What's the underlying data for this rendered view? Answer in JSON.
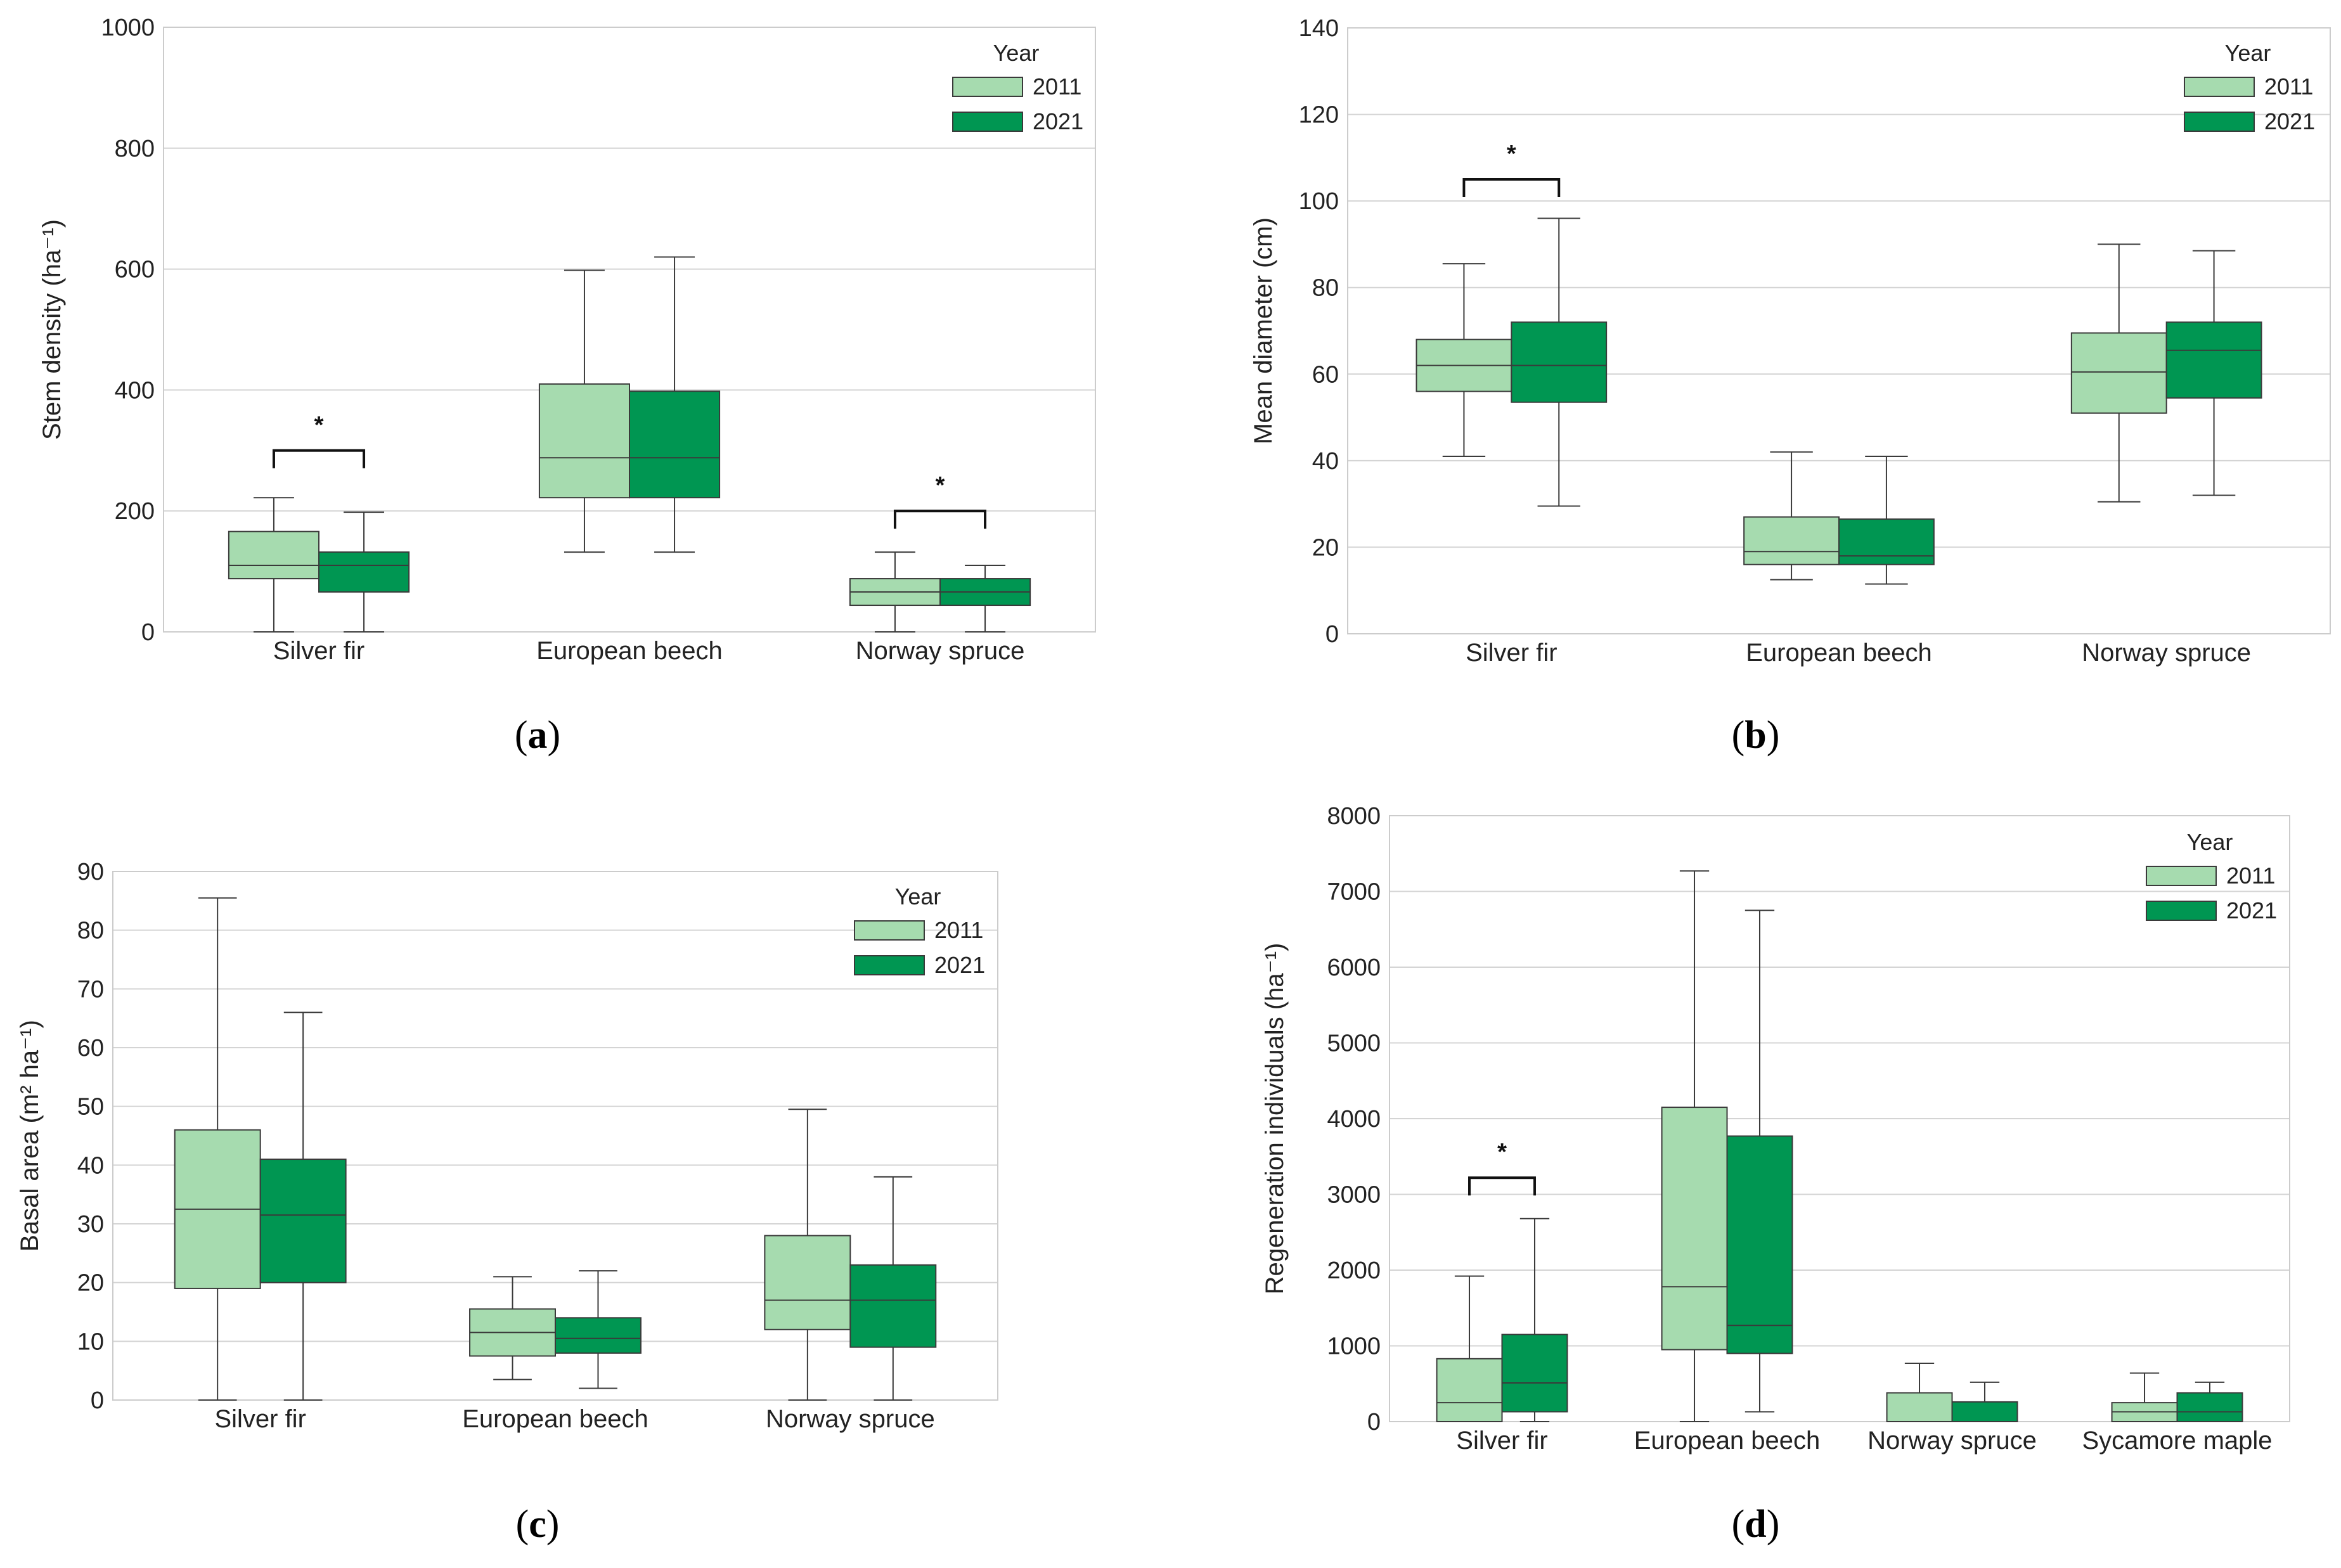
{
  "colors": {
    "c2011": "#a6dbaf",
    "c2021": "#009652",
    "grid": "#d4d4d4",
    "frame": "#cccccc",
    "line": "#3a3a3a"
  },
  "legend_title": "Year",
  "chart_data": [
    {
      "id": "a",
      "type": "box",
      "caption": "(a)",
      "caption_letter": "a",
      "ylabel": "Stem density (ha⁻¹)",
      "ylim": [
        0,
        1000
      ],
      "yticks": [
        0,
        200,
        400,
        600,
        800,
        1000
      ],
      "categories": [
        "Silver fir",
        "European beech",
        "Norway spruce"
      ],
      "legend": {
        "title": "Year",
        "entries": [
          "2011",
          "2021"
        ],
        "position": "top-right"
      },
      "series": [
        {
          "name": "2011",
          "boxes": [
            {
              "min": 0,
              "q1": 88,
              "median": 110,
              "q3": 166,
              "max": 222
            },
            {
              "min": 132,
              "q1": 222,
              "median": 288,
              "q3": 410,
              "max": 598
            },
            {
              "min": 0,
              "q1": 44,
              "median": 66,
              "q3": 88,
              "max": 132
            }
          ]
        },
        {
          "name": "2021",
          "boxes": [
            {
              "min": 0,
              "q1": 66,
              "median": 110,
              "q3": 132,
              "max": 198
            },
            {
              "min": 132,
              "q1": 222,
              "median": 288,
              "q3": 398,
              "max": 620
            },
            {
              "min": 0,
              "q1": 44,
              "median": 66,
              "q3": 88,
              "max": 110
            }
          ]
        }
      ],
      "annotations": [
        {
          "text": "*",
          "category": 0,
          "level": 300
        },
        {
          "text": "*",
          "category": 2,
          "level": 200
        }
      ]
    },
    {
      "id": "b",
      "type": "box",
      "caption": "(b)",
      "caption_letter": "b",
      "ylabel": "Mean diameter (cm)",
      "ylim": [
        0,
        140
      ],
      "yticks": [
        0,
        20,
        40,
        60,
        80,
        100,
        120,
        140
      ],
      "categories": [
        "Silver fir",
        "European beech",
        "Norway spruce"
      ],
      "legend": {
        "title": "Year",
        "entries": [
          "2011",
          "2021"
        ],
        "position": "top-right"
      },
      "series": [
        {
          "name": "2011",
          "boxes": [
            {
              "min": 41,
              "q1": 56,
              "median": 62,
              "q3": 68,
              "max": 85.5
            },
            {
              "min": 12.5,
              "q1": 16,
              "median": 19,
              "q3": 27,
              "max": 42
            },
            {
              "min": 30.5,
              "q1": 51,
              "median": 60.5,
              "q3": 69.5,
              "max": 90
            }
          ]
        },
        {
          "name": "2021",
          "boxes": [
            {
              "min": 29.5,
              "q1": 53.5,
              "median": 62,
              "q3": 72,
              "max": 96
            },
            {
              "min": 11.5,
              "q1": 16,
              "median": 18,
              "q3": 26.5,
              "max": 41
            },
            {
              "min": 32,
              "q1": 54.5,
              "median": 65.5,
              "q3": 72,
              "max": 88.5
            }
          ]
        }
      ],
      "annotations": [
        {
          "text": "*",
          "category": 0,
          "level": 105
        }
      ]
    },
    {
      "id": "c",
      "type": "box",
      "caption": "(c)",
      "caption_letter": "c",
      "ylabel": "Basal area (m² ha⁻¹)",
      "ylim": [
        0,
        90
      ],
      "yticks": [
        0,
        10,
        20,
        30,
        40,
        50,
        60,
        70,
        80,
        90
      ],
      "categories": [
        "Silver fir",
        "European beech",
        "Norway spruce"
      ],
      "legend": {
        "title": "Year",
        "entries": [
          "2011",
          "2021"
        ],
        "position": "top-right"
      },
      "series": [
        {
          "name": "2011",
          "boxes": [
            {
              "min": 0,
              "q1": 19,
              "median": 32.5,
              "q3": 46,
              "max": 85.5
            },
            {
              "min": 3.5,
              "q1": 7.5,
              "median": 11.5,
              "q3": 15.5,
              "max": 21
            },
            {
              "min": 0,
              "q1": 12,
              "median": 17,
              "q3": 28,
              "max": 49.5
            }
          ]
        },
        {
          "name": "2021",
          "boxes": [
            {
              "min": 0,
              "q1": 20,
              "median": 31.5,
              "q3": 41,
              "max": 66
            },
            {
              "min": 2,
              "q1": 8,
              "median": 10.5,
              "q3": 14,
              "max": 22
            },
            {
              "min": 0,
              "q1": 9,
              "median": 17,
              "q3": 23,
              "max": 38
            }
          ]
        }
      ],
      "annotations": []
    },
    {
      "id": "d",
      "type": "box",
      "caption": "(d)",
      "caption_letter": "d",
      "ylabel": "Regeneration individuals (ha⁻¹)",
      "ylim": [
        0,
        8000
      ],
      "yticks": [
        0,
        1000,
        2000,
        3000,
        4000,
        5000,
        6000,
        7000,
        8000
      ],
      "categories": [
        "Silver fir",
        "European beech",
        "Norway spruce",
        "Sycamore maple"
      ],
      "legend": {
        "title": "Year",
        "entries": [
          "2011",
          "2021"
        ],
        "position": "top-right"
      },
      "series": [
        {
          "name": "2011",
          "boxes": [
            {
              "min": 0,
              "q1": 0,
              "median": 250,
              "q3": 830,
              "max": 1920
            },
            {
              "min": 0,
              "q1": 950,
              "median": 1780,
              "q3": 4150,
              "max": 7270
            },
            {
              "min": 0,
              "q1": 0,
              "median": 0,
              "q3": 380,
              "max": 770
            },
            {
              "min": 0,
              "q1": 0,
              "median": 130,
              "q3": 250,
              "max": 640
            }
          ]
        },
        {
          "name": "2021",
          "boxes": [
            {
              "min": 0,
              "q1": 130,
              "median": 510,
              "q3": 1150,
              "max": 2680
            },
            {
              "min": 130,
              "q1": 900,
              "median": 1270,
              "q3": 3770,
              "max": 6750
            },
            {
              "min": 0,
              "q1": 0,
              "median": 0,
              "q3": 260,
              "max": 520
            },
            {
              "min": 0,
              "q1": 0,
              "median": 130,
              "q3": 380,
              "max": 520
            }
          ]
        }
      ],
      "annotations": [
        {
          "text": "*",
          "category": 0,
          "level": 3220
        }
      ]
    }
  ]
}
